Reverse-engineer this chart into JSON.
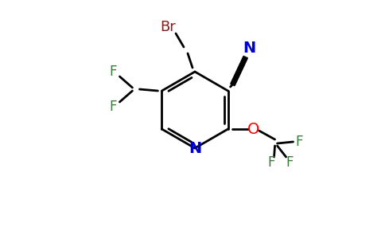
{
  "background_color": "#ffffff",
  "bond_color": "#000000",
  "atom_colors": {
    "Br": "#8b1a1a",
    "N_cyan": "#0000cd",
    "N_ring": "#0000cd",
    "O": "#ff0000",
    "F": "#3a7a3a",
    "C": "#000000"
  },
  "figsize": [
    4.84,
    3.0
  ],
  "dpi": 100
}
